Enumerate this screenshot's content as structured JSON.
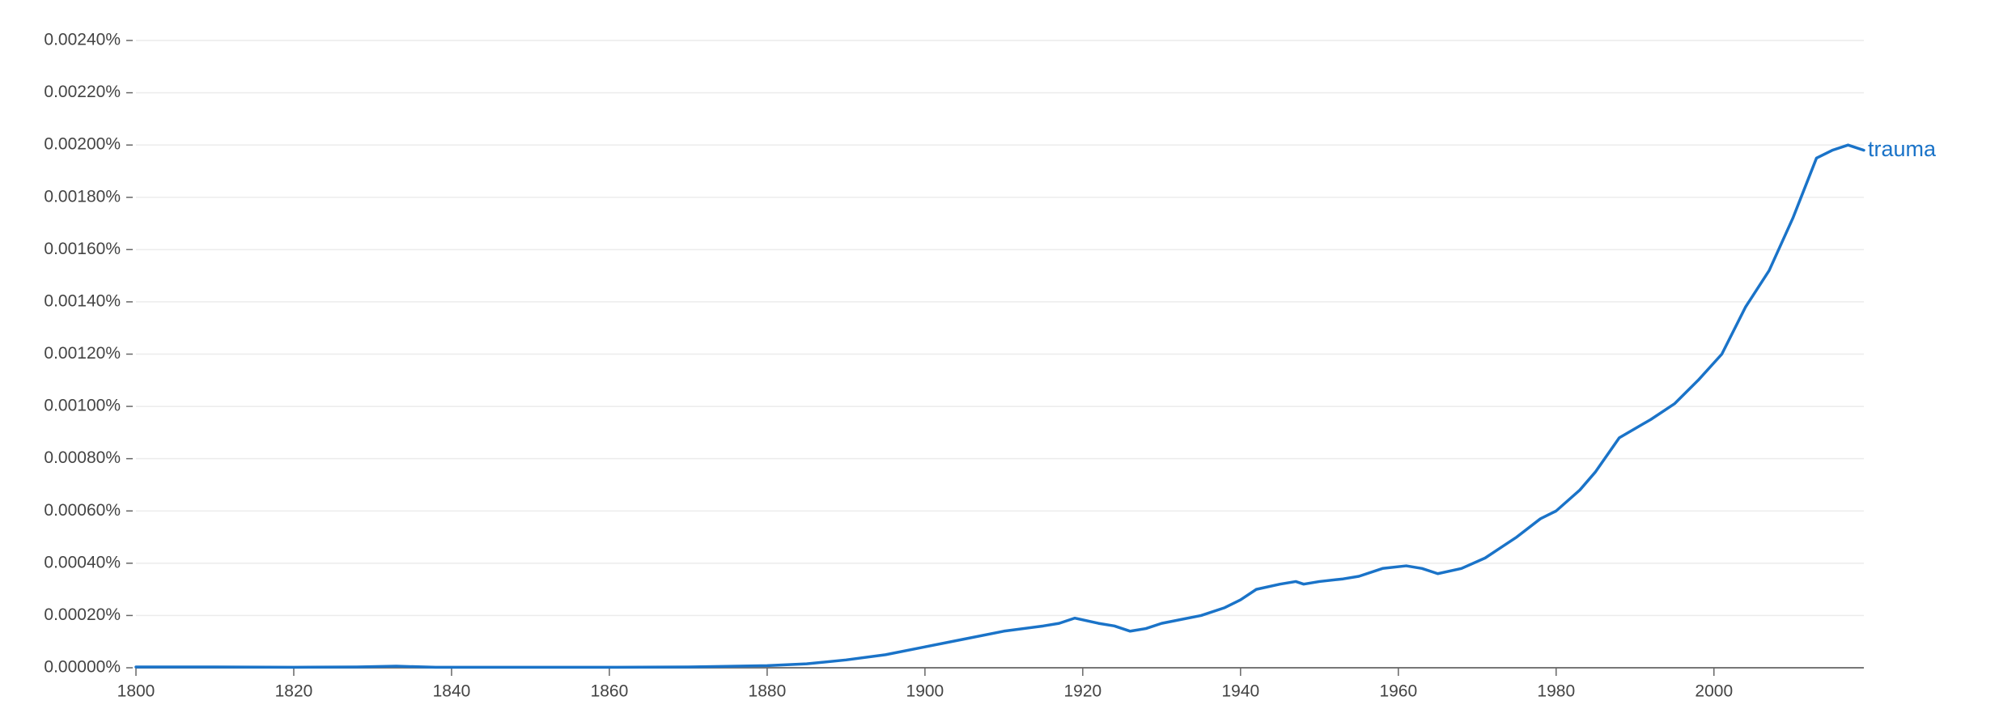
{
  "chart_data": {
    "type": "line",
    "x": [
      1800,
      1810,
      1820,
      1828,
      1833,
      1838,
      1850,
      1860,
      1870,
      1880,
      1885,
      1890,
      1895,
      1900,
      1905,
      1910,
      1915,
      1917,
      1919,
      1922,
      1924,
      1926,
      1928,
      1930,
      1935,
      1938,
      1940,
      1942,
      1945,
      1947,
      1948,
      1950,
      1953,
      1955,
      1958,
      1961,
      1963,
      1965,
      1968,
      1971,
      1973,
      1975,
      1978,
      1980,
      1983,
      1985,
      1988,
      1992,
      1995,
      1998,
      2001,
      2004,
      2007,
      2010,
      2013,
      2015,
      2017,
      2019
    ],
    "series": [
      {
        "name": "trauma",
        "color": "#1a73c8",
        "values": [
          3e-06,
          3e-06,
          2e-06,
          3e-06,
          6e-06,
          2e-06,
          2e-06,
          2e-06,
          3e-06,
          8e-06,
          1.5e-05,
          3e-05,
          5e-05,
          8e-05,
          0.00011,
          0.00014,
          0.00016,
          0.00017,
          0.00019,
          0.00017,
          0.00016,
          0.00014,
          0.00015,
          0.00017,
          0.0002,
          0.00023,
          0.00026,
          0.0003,
          0.00032,
          0.00033,
          0.00032,
          0.00033,
          0.00034,
          0.00035,
          0.00038,
          0.00039,
          0.00038,
          0.00036,
          0.00038,
          0.00042,
          0.00046,
          0.0005,
          0.00057,
          0.0006,
          0.00068,
          0.00075,
          0.00088,
          0.00095,
          0.00101,
          0.0011,
          0.0012,
          0.00138,
          0.00152,
          0.00172,
          0.00195,
          0.00198,
          0.002,
          0.00198
        ]
      }
    ],
    "xlim": [
      1800,
      2019
    ],
    "xticks": [
      1800,
      1820,
      1840,
      1860,
      1880,
      1900,
      1920,
      1940,
      1960,
      1980,
      2000
    ],
    "ylim": [
      0,
      0.0024
    ],
    "yticks": [
      {
        "value": 0,
        "label": "0.00000%"
      },
      {
        "value": 0.0002,
        "label": "0.00020%"
      },
      {
        "value": 0.0004,
        "label": "0.00040%"
      },
      {
        "value": 0.0006,
        "label": "0.00060%"
      },
      {
        "value": 0.0008,
        "label": "0.00080%"
      },
      {
        "value": 0.001,
        "label": "0.00100%"
      },
      {
        "value": 0.0012,
        "label": "0.00120%"
      },
      {
        "value": 0.0014,
        "label": "0.00140%"
      },
      {
        "value": 0.0016,
        "label": "0.00160%"
      },
      {
        "value": 0.0018,
        "label": "0.00180%"
      },
      {
        "value": 0.002,
        "label": "0.00200%"
      },
      {
        "value": 0.0022,
        "label": "0.00220%"
      },
      {
        "value": 0.0024,
        "label": "0.00240%"
      }
    ],
    "grid": true
  }
}
